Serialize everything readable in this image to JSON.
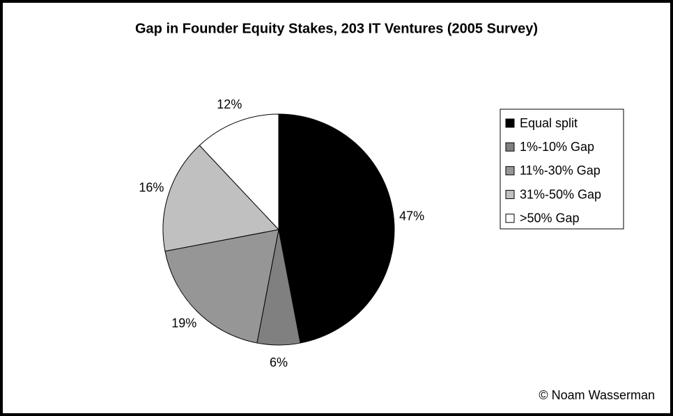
{
  "chart_data": {
    "type": "pie",
    "title": "Gap in Founder Equity Stakes, 203 IT Ventures (2005 Survey)",
    "categories": [
      "Equal split",
      "1%-10% Gap",
      "11%-30% Gap",
      "31%-50% Gap",
      ">50% Gap"
    ],
    "values": [
      47,
      6,
      19,
      16,
      12
    ],
    "value_labels": [
      "47%",
      "6%",
      "19%",
      "16%",
      "12%"
    ],
    "colors": [
      "#000000",
      "#808080",
      "#969696",
      "#c0c0c0",
      "#ffffff"
    ],
    "legend": "right",
    "annotation": "© Noam Wasserman"
  }
}
